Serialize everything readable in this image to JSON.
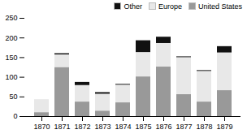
{
  "chart_data": {
    "type": "bar",
    "stacked": true,
    "categories": [
      "1870",
      "1871",
      "1872",
      "1873",
      "1874",
      "1875",
      "1876",
      "1877",
      "1878",
      "1879"
    ],
    "series": [
      {
        "name": "United States",
        "color": "#999999",
        "values": [
          10,
          125,
          37,
          14,
          35,
          101,
          126,
          56,
          37,
          66
        ]
      },
      {
        "name": "Europe",
        "color": "#e8e8e8",
        "values": [
          33,
          32,
          42,
          43,
          45,
          62,
          60,
          94,
          78,
          96
        ]
      },
      {
        "name": "Other",
        "color": "#111111",
        "values": [
          0,
          3,
          8,
          4,
          2,
          30,
          16,
          2,
          2,
          16
        ]
      }
    ],
    "ylim": [
      0,
      250
    ],
    "yticks": [
      0,
      50,
      100,
      150,
      200,
      250
    ],
    "grid": false,
    "legend": "upper right"
  }
}
